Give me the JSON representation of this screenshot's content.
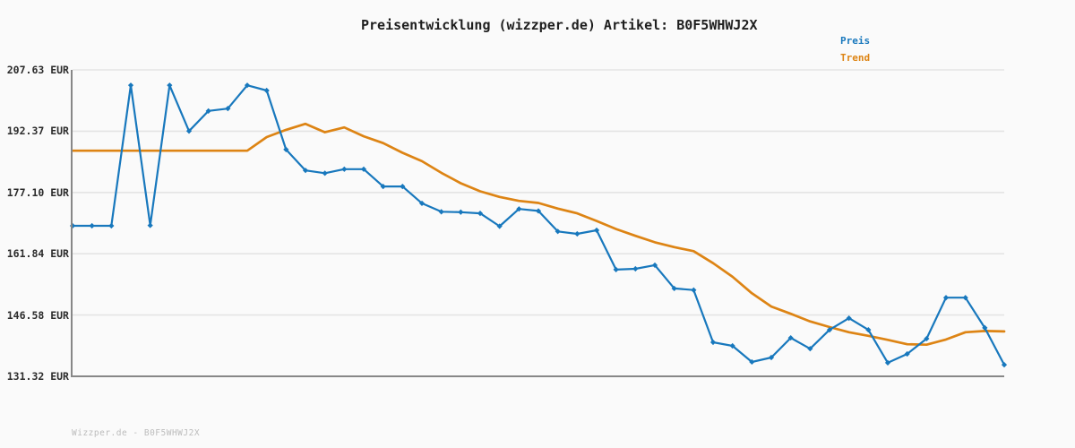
{
  "title": "Preisentwicklung (wizzper.de) Artikel: B0F5WHWJ2X",
  "footer": "Wizzper.de - B0F5WHWJ2X",
  "colors": {
    "price": "#1878bd",
    "trend": "#dd8414",
    "grid": "#e4e4e4",
    "axis": "#878787",
    "background": "#fafafa",
    "title_text": "#1e1e1e",
    "tick_text": "#2b2b2b",
    "footer_text": "#bcbcbc"
  },
  "legend": {
    "position": "top-right",
    "items": [
      {
        "label": "Preis",
        "color": "#1878bd"
      },
      {
        "label": "Trend",
        "color": "#dd8414"
      }
    ]
  },
  "chart_data": {
    "type": "line",
    "title": "Preisentwicklung (wizzper.de) Artikel: B0F5WHWJ2X",
    "xlabel": "",
    "ylabel": "EUR",
    "x_tick_labels": [],
    "y_tick_labels": [
      "207.63 EUR",
      "192.37 EUR",
      "177.10 EUR",
      "161.84 EUR",
      "146.58 EUR",
      "131.32 EUR"
    ],
    "y_tick_values": [
      207.63,
      192.37,
      177.1,
      161.84,
      146.58,
      131.32
    ],
    "ylim": [
      131.32,
      207.63
    ],
    "grid": true,
    "legend_position": "top-right",
    "series": [
      {
        "name": "Preis",
        "color": "#1878bd",
        "marker": "diamond",
        "unit": "EUR",
        "values": [
          168.8,
          168.8,
          168.8,
          203.8,
          168.9,
          203.8,
          192.4,
          197.4,
          198.0,
          203.8,
          202.5,
          187.8,
          182.6,
          181.9,
          182.9,
          182.9,
          178.6,
          178.6,
          174.4,
          172.3,
          172.2,
          171.9,
          168.7,
          173.0,
          172.5,
          167.4,
          166.8,
          167.7,
          157.9,
          158.1,
          159.0,
          153.2,
          152.8,
          139.8,
          138.9,
          134.9,
          136.0,
          140.9,
          138.2,
          142.9,
          145.8,
          142.9,
          134.7,
          136.9,
          140.7,
          150.9,
          150.9,
          143.4,
          134.2
        ]
      },
      {
        "name": "Trend",
        "color": "#dd8414",
        "marker": "none",
        "unit": "EUR",
        "values": [
          187.5,
          187.5,
          187.5,
          187.5,
          187.5,
          187.5,
          187.5,
          187.5,
          187.5,
          187.5,
          190.9,
          192.7,
          194.2,
          192.1,
          193.3,
          191.1,
          189.4,
          187.0,
          184.9,
          182.0,
          179.4,
          177.4,
          176.0,
          175.0,
          174.5,
          173.1,
          171.9,
          170.0,
          168.0,
          166.3,
          164.7,
          163.5,
          162.5,
          159.5,
          156.1,
          152.0,
          148.7,
          146.9,
          145.0,
          143.6,
          142.3,
          141.4,
          140.4,
          139.3,
          139.2,
          140.5,
          142.3,
          142.6,
          142.5
        ]
      }
    ]
  }
}
